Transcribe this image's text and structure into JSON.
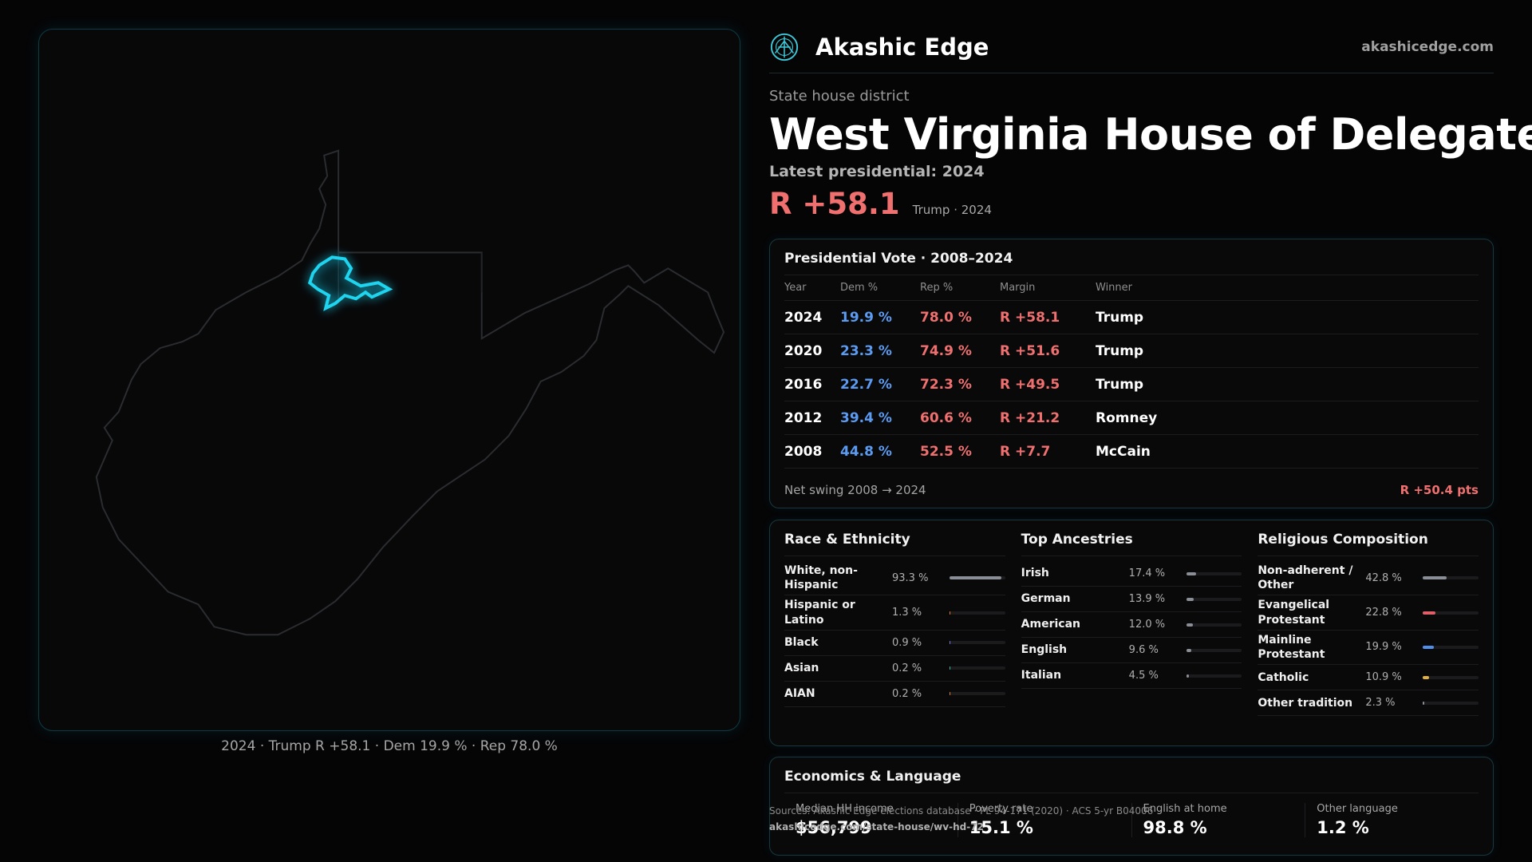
{
  "map": {
    "caption": "2024 · Trump R +58.1 · Dem 19.9 % · Rep 78.0 %"
  },
  "brand": {
    "name": "Akashic Edge",
    "url": "akashicedge.com",
    "logo_icon": "akashic-edge-logo-icon"
  },
  "header": {
    "kicker": "State house district",
    "title": "West Virginia House of Delegates District",
    "latest": "Latest presidential: 2024",
    "margin": "R +58.1",
    "margin_sub": "Trump · 2024"
  },
  "presidential": {
    "title": "Presidential Vote · 2008–2024",
    "columns": [
      "Year",
      "Dem %",
      "Rep %",
      "Margin",
      "Winner"
    ],
    "rows": [
      {
        "year": "2024",
        "dem": "19.9 %",
        "rep": "78.0 %",
        "margin": "R +58.1",
        "winner": "Trump"
      },
      {
        "year": "2020",
        "dem": "23.3 %",
        "rep": "74.9 %",
        "margin": "R +51.6",
        "winner": "Trump"
      },
      {
        "year": "2016",
        "dem": "22.7 %",
        "rep": "72.3 %",
        "margin": "R +49.5",
        "winner": "Trump"
      },
      {
        "year": "2012",
        "dem": "39.4 %",
        "rep": "60.6 %",
        "margin": "R +21.2",
        "winner": "Romney"
      },
      {
        "year": "2008",
        "dem": "44.8 %",
        "rep": "52.5 %",
        "margin": "R +7.7",
        "winner": "McCain"
      }
    ],
    "swing_label": "Net swing 2008 → 2024",
    "swing_value": "R +50.4 pts"
  },
  "race": {
    "title": "Race & Ethnicity",
    "rows": [
      {
        "label": "White, non-Hispanic",
        "value": "93.3 %",
        "pct": 93.3,
        "color": "#8A8E96"
      },
      {
        "label": "Hispanic or Latino",
        "value": "1.3 %",
        "pct": 1.3,
        "color": "#E07A3A"
      },
      {
        "label": "Black",
        "value": "0.9 %",
        "pct": 0.9,
        "color": "#6C7BE0"
      },
      {
        "label": "Asian",
        "value": "0.2 %",
        "pct": 0.2,
        "color": "#3FB9A0"
      },
      {
        "label": "AIAN",
        "value": "0.2 %",
        "pct": 0.2,
        "color": "#E07A3A"
      }
    ]
  },
  "ancestry": {
    "title": "Top Ancestries",
    "rows": [
      {
        "label": "Irish",
        "value": "17.4 %",
        "pct": 17.4,
        "color": "#8A8E96"
      },
      {
        "label": "German",
        "value": "13.9 %",
        "pct": 13.9,
        "color": "#8A8E96"
      },
      {
        "label": "American",
        "value": "12.0 %",
        "pct": 12.0,
        "color": "#8A8E96"
      },
      {
        "label": "English",
        "value": "9.6 %",
        "pct": 9.6,
        "color": "#8A8E96"
      },
      {
        "label": "Italian",
        "value": "4.5 %",
        "pct": 4.5,
        "color": "#8A8E96"
      }
    ]
  },
  "religion": {
    "title": "Religious Composition",
    "rows": [
      {
        "label": "Non-adherent / Other",
        "value": "42.8 %",
        "pct": 42.8,
        "color": "#8A8E96"
      },
      {
        "label": "Evangelical Protestant",
        "value": "22.8 %",
        "pct": 22.8,
        "color": "#E0606A"
      },
      {
        "label": "Mainline Protestant",
        "value": "19.9 %",
        "pct": 19.9,
        "color": "#4F8FE8"
      },
      {
        "label": "Catholic",
        "value": "10.9 %",
        "pct": 10.9,
        "color": "#E0B040"
      },
      {
        "label": "Other tradition",
        "value": "2.3 %",
        "pct": 2.3,
        "color": "#8A8E96"
      }
    ]
  },
  "economics": {
    "title": "Economics & Language",
    "cells": [
      {
        "label": "Median HH income",
        "value": "$56,799"
      },
      {
        "label": "Poverty rate",
        "value": "15.1 %"
      },
      {
        "label": "English at home",
        "value": "98.8 %"
      },
      {
        "label": "Other language",
        "value": "1.2 %"
      }
    ]
  },
  "sources": {
    "text": "Sources: Akashic Edge elections database · PL 94-171 (2020) · ACS 5-yr B04006",
    "link": "akashicedge.com/state-house/wv-hd-72"
  }
}
